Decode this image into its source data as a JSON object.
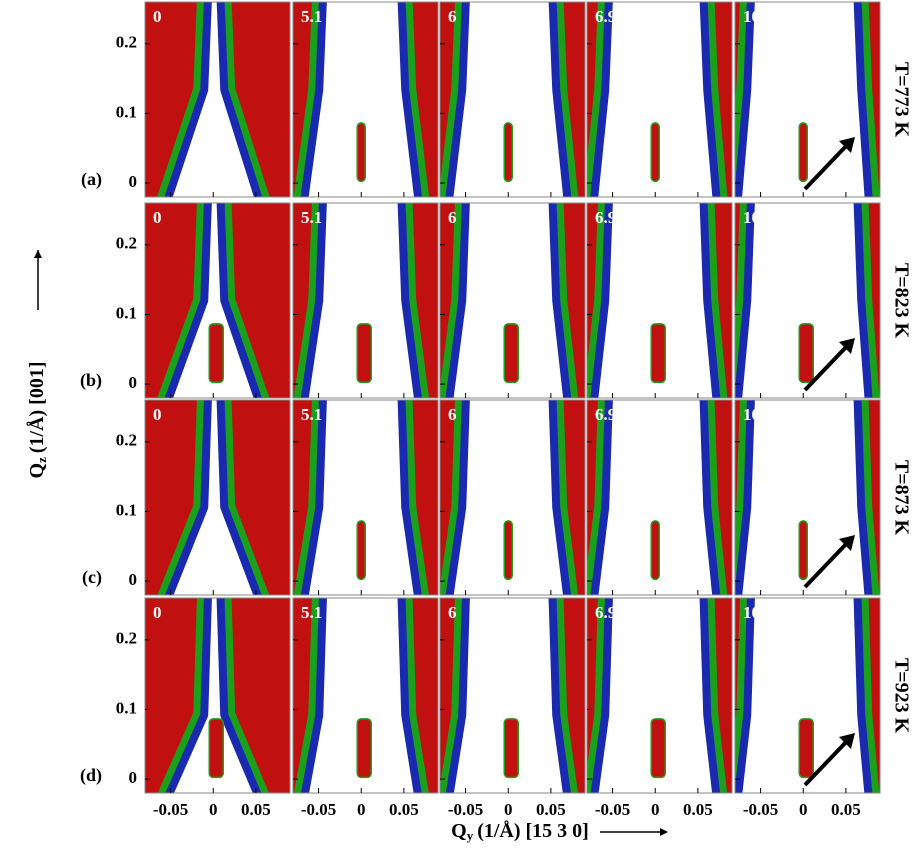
{
  "chart_data": {
    "type": "heatmap",
    "x_label": {
      "symbol": "Q",
      "subscript": "y",
      "text": "(1/Å) [15 3 0]"
    },
    "y_label": {
      "symbol": "Q",
      "subscript": "z",
      "text": "(1/Å) [001]"
    },
    "xlim": [
      -0.08,
      0.09
    ],
    "xticks": [
      -0.05,
      0,
      0.05
    ],
    "ylim": [
      -0.02,
      0.26
    ],
    "yticks": [
      0,
      0.1,
      0.2
    ],
    "rows": [
      {
        "label": "(a)",
        "temperature": "T=773 K",
        "panels": [
          "0",
          "5.1",
          "6",
          "6.9",
          "10.3"
        ]
      },
      {
        "label": "(b)",
        "temperature": "T=823 K",
        "panels": [
          "0",
          "5.1",
          "6",
          "6.9",
          "10.3"
        ]
      },
      {
        "label": "(c)",
        "temperature": "T=873 K",
        "panels": [
          "0",
          "5.1",
          "6",
          "6.9",
          "10.3"
        ]
      },
      {
        "label": "(d)",
        "temperature": "T=923 K",
        "panels": [
          "0",
          "5.1",
          "6",
          "6.9",
          "10.3"
        ]
      }
    ]
  }
}
